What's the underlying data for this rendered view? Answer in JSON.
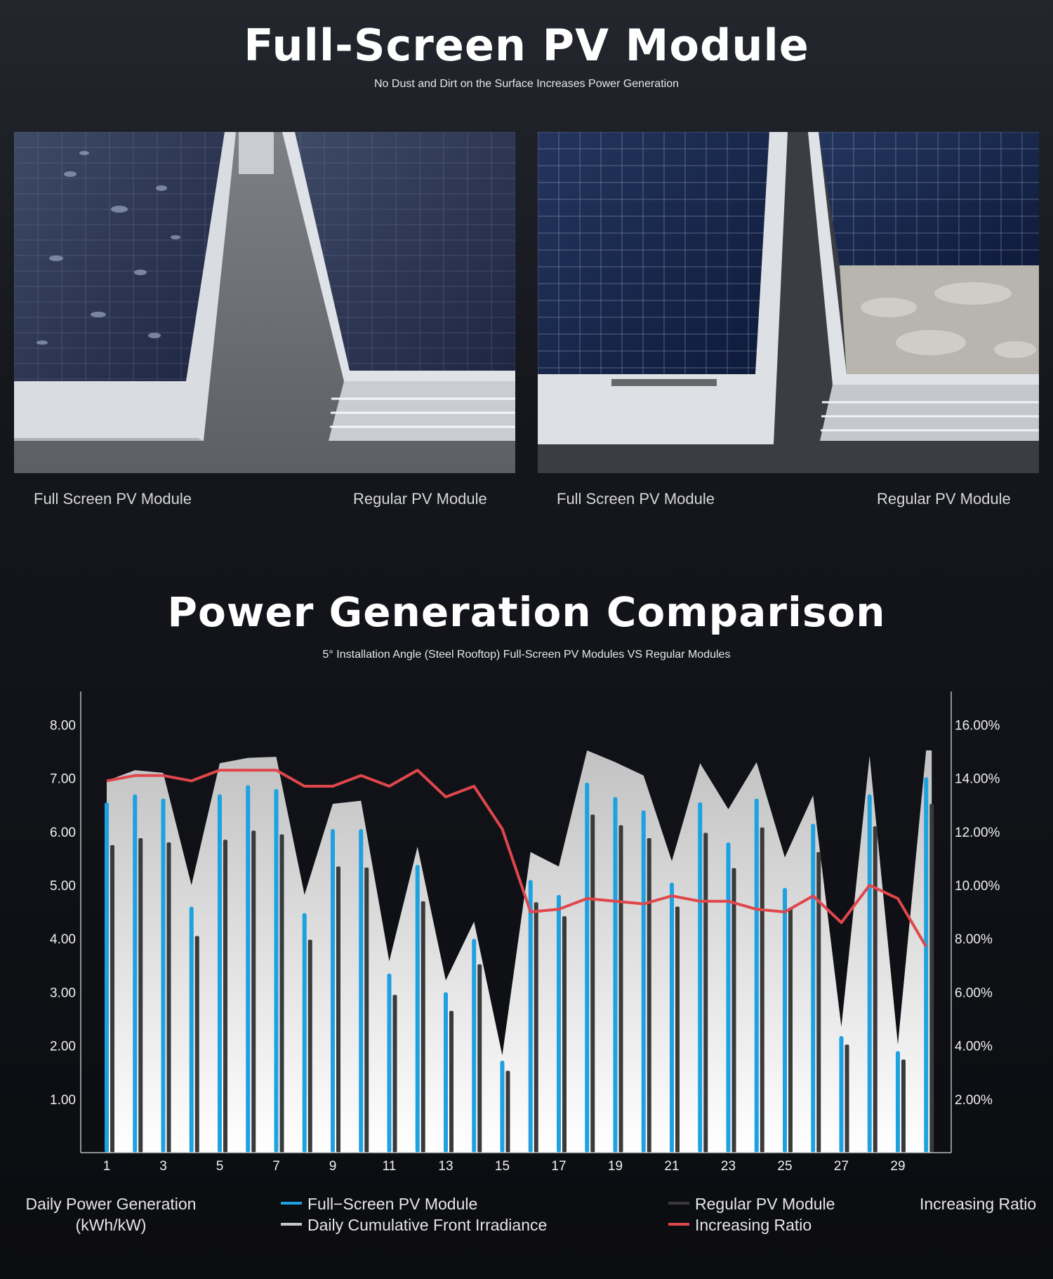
{
  "header": {
    "title": "Full-Screen PV Module",
    "subtitle": "No Dust and Dirt on the Surface Increases Power Generation"
  },
  "photos": [
    {
      "left_caption": "Full Screen PV Module",
      "right_caption": "Regular PV Module"
    },
    {
      "left_caption": "Full Screen PV Module",
      "right_caption": "Regular PV Module"
    }
  ],
  "comparison": {
    "title": "Power Generation Comparison",
    "subtitle": "5°   Installation Angle (Steel Rooftop) Full-Screen PV Modules VS Regular Modules"
  },
  "colors": {
    "full_screen": "#1da1e0",
    "regular": "#3a3a3a",
    "irradiance": "#c8c8c8",
    "ratio": "#e0474c"
  },
  "chart_data": {
    "type": "bar",
    "x": [
      1,
      2,
      3,
      4,
      5,
      6,
      7,
      8,
      9,
      10,
      11,
      12,
      13,
      14,
      15,
      16,
      17,
      18,
      19,
      20,
      21,
      22,
      23,
      24,
      25,
      26,
      27,
      28,
      29,
      30
    ],
    "x_tick_labels": [
      "1",
      "3",
      "5",
      "7",
      "9",
      "11",
      "13",
      "15",
      "17",
      "19",
      "21",
      "23",
      "25",
      "27",
      "29"
    ],
    "ylabel_left": "Daily Power Generation\n(kWh/kW)",
    "ylabel_right": "Increasing Ratio",
    "y_left_ticks": [
      "1.00",
      "2.00",
      "3.00",
      "4.00",
      "5.00",
      "6.00",
      "7.00",
      "8.00"
    ],
    "y_right_ticks": [
      "2.00%",
      "4.00%",
      "6.00%",
      "8.00%",
      "10.00%",
      "12.00%",
      "14.00%",
      "16.00%"
    ],
    "ylim_left": [
      0,
      8.6
    ],
    "ylim_right": [
      0,
      17.2
    ],
    "series": [
      {
        "name": "Full−Screen PV Module",
        "kind": "bar",
        "axis": "left",
        "values": [
          6.55,
          6.7,
          6.62,
          4.6,
          6.7,
          6.87,
          6.8,
          4.48,
          6.05,
          6.05,
          3.35,
          5.38,
          3.0,
          4.0,
          1.72,
          5.1,
          4.82,
          6.92,
          6.65,
          6.4,
          5.05,
          6.55,
          5.8,
          6.62,
          4.95,
          6.15,
          2.18,
          6.7,
          1.9,
          7.02
        ]
      },
      {
        "name": "Regular PV Module",
        "kind": "bar",
        "axis": "left",
        "values": [
          5.75,
          5.88,
          5.8,
          4.05,
          5.85,
          6.02,
          5.95,
          3.98,
          5.35,
          5.33,
          2.95,
          4.7,
          2.65,
          3.52,
          1.53,
          4.68,
          4.42,
          6.32,
          6.12,
          5.88,
          4.6,
          5.98,
          5.32,
          6.08,
          4.58,
          5.62,
          2.02,
          6.1,
          1.74,
          6.52
        ]
      },
      {
        "name": "Daily Cumulative Front Irradiance",
        "kind": "area",
        "axis": "left",
        "values": [
          6.95,
          7.15,
          7.1,
          5.0,
          7.28,
          7.38,
          7.4,
          4.82,
          6.52,
          6.58,
          3.58,
          5.72,
          3.22,
          4.32,
          1.82,
          5.62,
          5.35,
          7.52,
          7.3,
          7.05,
          5.45,
          7.28,
          6.42,
          7.3,
          5.52,
          6.68,
          2.35,
          7.42,
          2.02,
          7.52
        ]
      },
      {
        "name": "Increasing Ratio",
        "kind": "line",
        "axis": "right",
        "values": [
          13.9,
          14.1,
          14.1,
          13.9,
          14.3,
          14.3,
          14.3,
          13.7,
          13.7,
          14.1,
          13.7,
          14.3,
          13.3,
          13.7,
          12.1,
          9.0,
          9.1,
          9.5,
          9.4,
          9.3,
          9.6,
          9.4,
          9.4,
          9.1,
          9.0,
          9.6,
          8.6,
          10.0,
          9.5,
          7.7
        ]
      }
    ],
    "legend": {
      "full_screen": "Full−Screen PV Module",
      "irradiance": "Daily Cumulative Front Irradiance",
      "regular": "Regular PV Module",
      "ratio": "Increasing Ratio"
    },
    "legend_placement": "bottom",
    "grid": false
  }
}
